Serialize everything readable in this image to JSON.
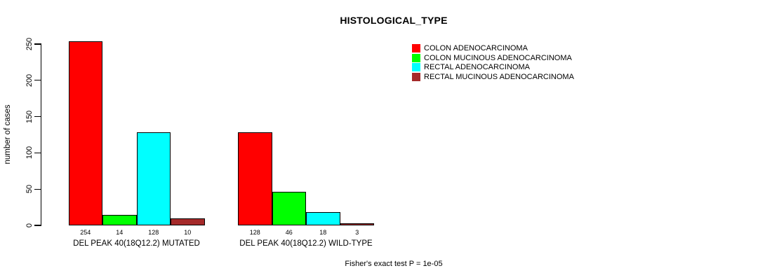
{
  "title": "HISTOLOGICAL_TYPE",
  "y_axis": {
    "label": "number of cases",
    "ticks": [
      0,
      50,
      100,
      150,
      200,
      250
    ]
  },
  "footer": "Fisher's exact test P = 1e-05",
  "legend": [
    {
      "label": "COLON ADENOCARCINOMA",
      "color": "#ff0000"
    },
    {
      "label": "COLON MUCINOUS ADENOCARCINOMA",
      "color": "#00ff00"
    },
    {
      "label": "RECTAL ADENOCARCINOMA",
      "color": "#00ffff"
    },
    {
      "label": "RECTAL MUCINOUS ADENOCARCINOMA",
      "color": "#a52a2a"
    }
  ],
  "chart_data": {
    "type": "bar",
    "title": "HISTOLOGICAL_TYPE",
    "xlabel": "",
    "ylabel": "number of cases",
    "ylim": [
      0,
      250
    ],
    "grid": false,
    "legend_position": "top-right",
    "bar_value_labels": true,
    "annotation": "Fisher's exact test P = 1e-05",
    "categories": [
      "DEL PEAK 40(18Q12.2) MUTATED",
      "DEL PEAK 40(18Q12.2) WILD-TYPE"
    ],
    "series": [
      {
        "name": "COLON ADENOCARCINOMA",
        "color": "#ff0000",
        "values": [
          254,
          128
        ]
      },
      {
        "name": "COLON MUCINOUS ADENOCARCINOMA",
        "color": "#00ff00",
        "values": [
          14,
          46
        ]
      },
      {
        "name": "RECTAL ADENOCARCINOMA",
        "color": "#00ffff",
        "values": [
          128,
          18
        ]
      },
      {
        "name": "RECTAL MUCINOUS ADENOCARCINOMA",
        "color": "#a52a2a",
        "values": [
          10,
          3
        ]
      }
    ]
  }
}
